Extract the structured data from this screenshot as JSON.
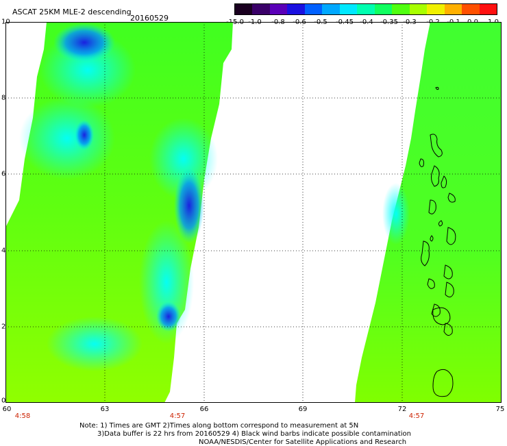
{
  "header": {
    "title": "ASCAT 25KM MLE-2 descending",
    "date": "20160529"
  },
  "colorbar": {
    "labels": [
      "-15.0",
      "-1.0",
      "-0.8",
      "-0.6",
      "-0.5",
      "-0.45",
      "-0.4",
      "-0.35",
      "-0.3",
      "-0.2",
      "-0.1",
      "0.0",
      "1.0"
    ],
    "colors": [
      "#1a0020",
      "#3a0068",
      "#5a00b8",
      "#1a10e0",
      "#0060ff",
      "#00a8ff",
      "#00e8ff",
      "#00ffb0",
      "#10ff60",
      "#50ff10",
      "#a8ff00",
      "#f0f000",
      "#ffb000",
      "#ff5000",
      "#ff1010"
    ]
  },
  "axes": {
    "x_ticks": [
      "60",
      "63",
      "66",
      "69",
      "72",
      "75"
    ],
    "y_ticks": [
      "0",
      "2",
      "4",
      "6",
      "8",
      "10"
    ],
    "time_labels": [
      "4:58",
      "4:57",
      "4:57"
    ]
  },
  "notes": [
    "Note: 1) Times are GMT 2)Times along bottom correspond to measurement at 5N",
    "3)Data buffer is 22 hrs from 20160529 4) Black wind barbs indicate possible contamination",
    "NOAA/NESDIS/Center for Satellite Applications and Research"
  ],
  "colors": {
    "swath_base": "#50ff10",
    "low_value": "#00ffff",
    "min_value": "#1a10e0",
    "time_label": "#cc2200"
  }
}
